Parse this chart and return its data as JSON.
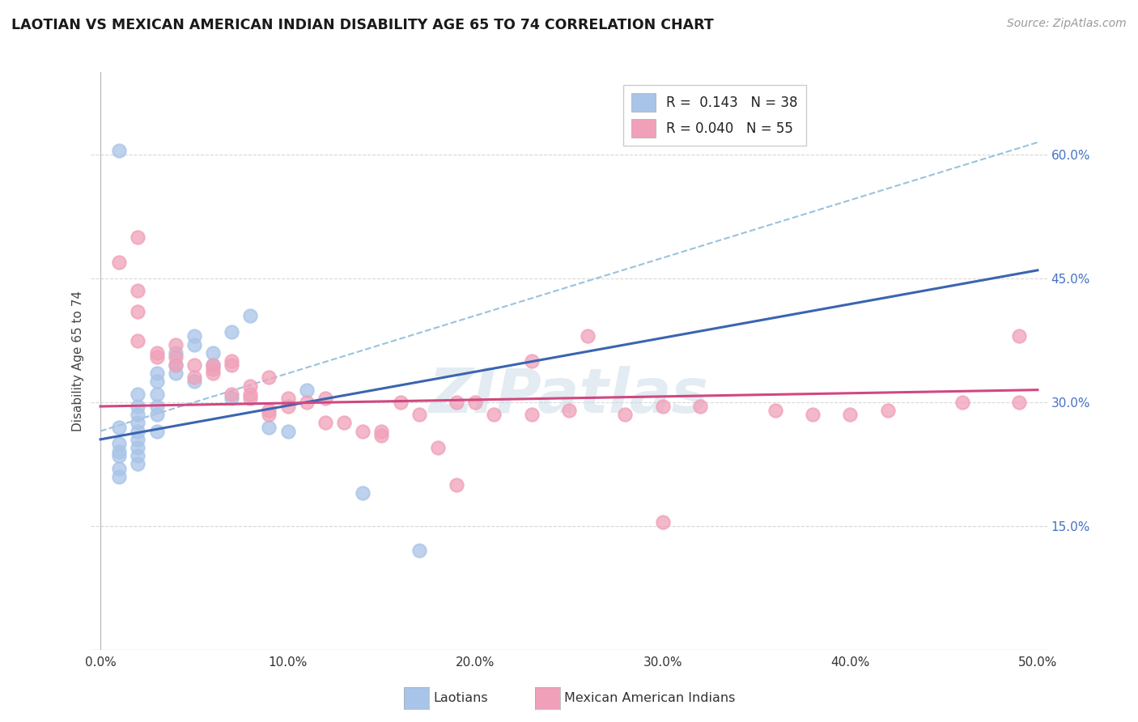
{
  "title": "LAOTIAN VS MEXICAN AMERICAN INDIAN DISABILITY AGE 65 TO 74 CORRELATION CHART",
  "source": "Source: ZipAtlas.com",
  "xlabel": "",
  "ylabel": "Disability Age 65 to 74",
  "xlim": [
    -0.005,
    0.505
  ],
  "ylim": [
    0.0,
    0.7
  ],
  "xticks": [
    0.0,
    0.1,
    0.2,
    0.3,
    0.4,
    0.5
  ],
  "xticklabels": [
    "0.0%",
    "10.0%",
    "20.0%",
    "30.0%",
    "40.0%",
    "50.0%"
  ],
  "yticks_right": [
    0.15,
    0.3,
    0.45,
    0.6
  ],
  "yticklabels_right": [
    "15.0%",
    "30.0%",
    "45.0%",
    "60.0%"
  ],
  "laotian_R": 0.143,
  "laotian_N": 38,
  "mexican_R": 0.04,
  "mexican_N": 55,
  "laotian_color": "#a8c4e8",
  "mexican_color": "#f0a0b8",
  "laotian_line_color": "#3a65b0",
  "mexican_line_color": "#d04880",
  "dash_line_color": "#90bcd8",
  "background_color": "#ffffff",
  "grid_color": "#d8d8d8",
  "watermark": "ZIPatlas",
  "laotian_x": [
    0.01,
    0.01,
    0.01,
    0.01,
    0.01,
    0.01,
    0.01,
    0.02,
    0.02,
    0.02,
    0.02,
    0.02,
    0.02,
    0.02,
    0.02,
    0.02,
    0.03,
    0.03,
    0.03,
    0.03,
    0.03,
    0.03,
    0.04,
    0.04,
    0.04,
    0.05,
    0.05,
    0.05,
    0.06,
    0.06,
    0.07,
    0.07,
    0.08,
    0.09,
    0.1,
    0.11,
    0.14,
    0.17
  ],
  "laotian_y": [
    0.605,
    0.27,
    0.25,
    0.24,
    0.235,
    0.22,
    0.21,
    0.31,
    0.295,
    0.285,
    0.275,
    0.265,
    0.255,
    0.245,
    0.235,
    0.225,
    0.335,
    0.325,
    0.31,
    0.295,
    0.285,
    0.265,
    0.36,
    0.345,
    0.335,
    0.38,
    0.37,
    0.325,
    0.36,
    0.345,
    0.385,
    0.305,
    0.405,
    0.27,
    0.265,
    0.315,
    0.19,
    0.12
  ],
  "mexican_x": [
    0.01,
    0.02,
    0.02,
    0.02,
    0.02,
    0.03,
    0.03,
    0.04,
    0.04,
    0.04,
    0.05,
    0.05,
    0.06,
    0.06,
    0.06,
    0.07,
    0.07,
    0.07,
    0.08,
    0.08,
    0.08,
    0.09,
    0.09,
    0.09,
    0.1,
    0.1,
    0.11,
    0.12,
    0.12,
    0.13,
    0.14,
    0.15,
    0.15,
    0.16,
    0.17,
    0.18,
    0.19,
    0.19,
    0.2,
    0.21,
    0.23,
    0.23,
    0.25,
    0.26,
    0.28,
    0.3,
    0.3,
    0.32,
    0.36,
    0.38,
    0.4,
    0.42,
    0.46,
    0.49,
    0.49
  ],
  "mexican_y": [
    0.47,
    0.5,
    0.435,
    0.41,
    0.375,
    0.36,
    0.355,
    0.37,
    0.355,
    0.345,
    0.345,
    0.33,
    0.34,
    0.345,
    0.335,
    0.345,
    0.35,
    0.31,
    0.32,
    0.31,
    0.305,
    0.33,
    0.29,
    0.285,
    0.305,
    0.295,
    0.3,
    0.305,
    0.275,
    0.275,
    0.265,
    0.265,
    0.26,
    0.3,
    0.285,
    0.245,
    0.3,
    0.2,
    0.3,
    0.285,
    0.35,
    0.285,
    0.29,
    0.38,
    0.285,
    0.155,
    0.295,
    0.295,
    0.29,
    0.285,
    0.285,
    0.29,
    0.3,
    0.38,
    0.3
  ],
  "dash_line_x": [
    0.0,
    0.5
  ],
  "dash_line_y": [
    0.265,
    0.615
  ],
  "laotian_trendline_x": [
    0.0,
    0.5
  ],
  "laotian_trendline_y": [
    0.255,
    0.46
  ],
  "mexican_trendline_x": [
    0.0,
    0.5
  ],
  "mexican_trendline_y": [
    0.295,
    0.315
  ]
}
